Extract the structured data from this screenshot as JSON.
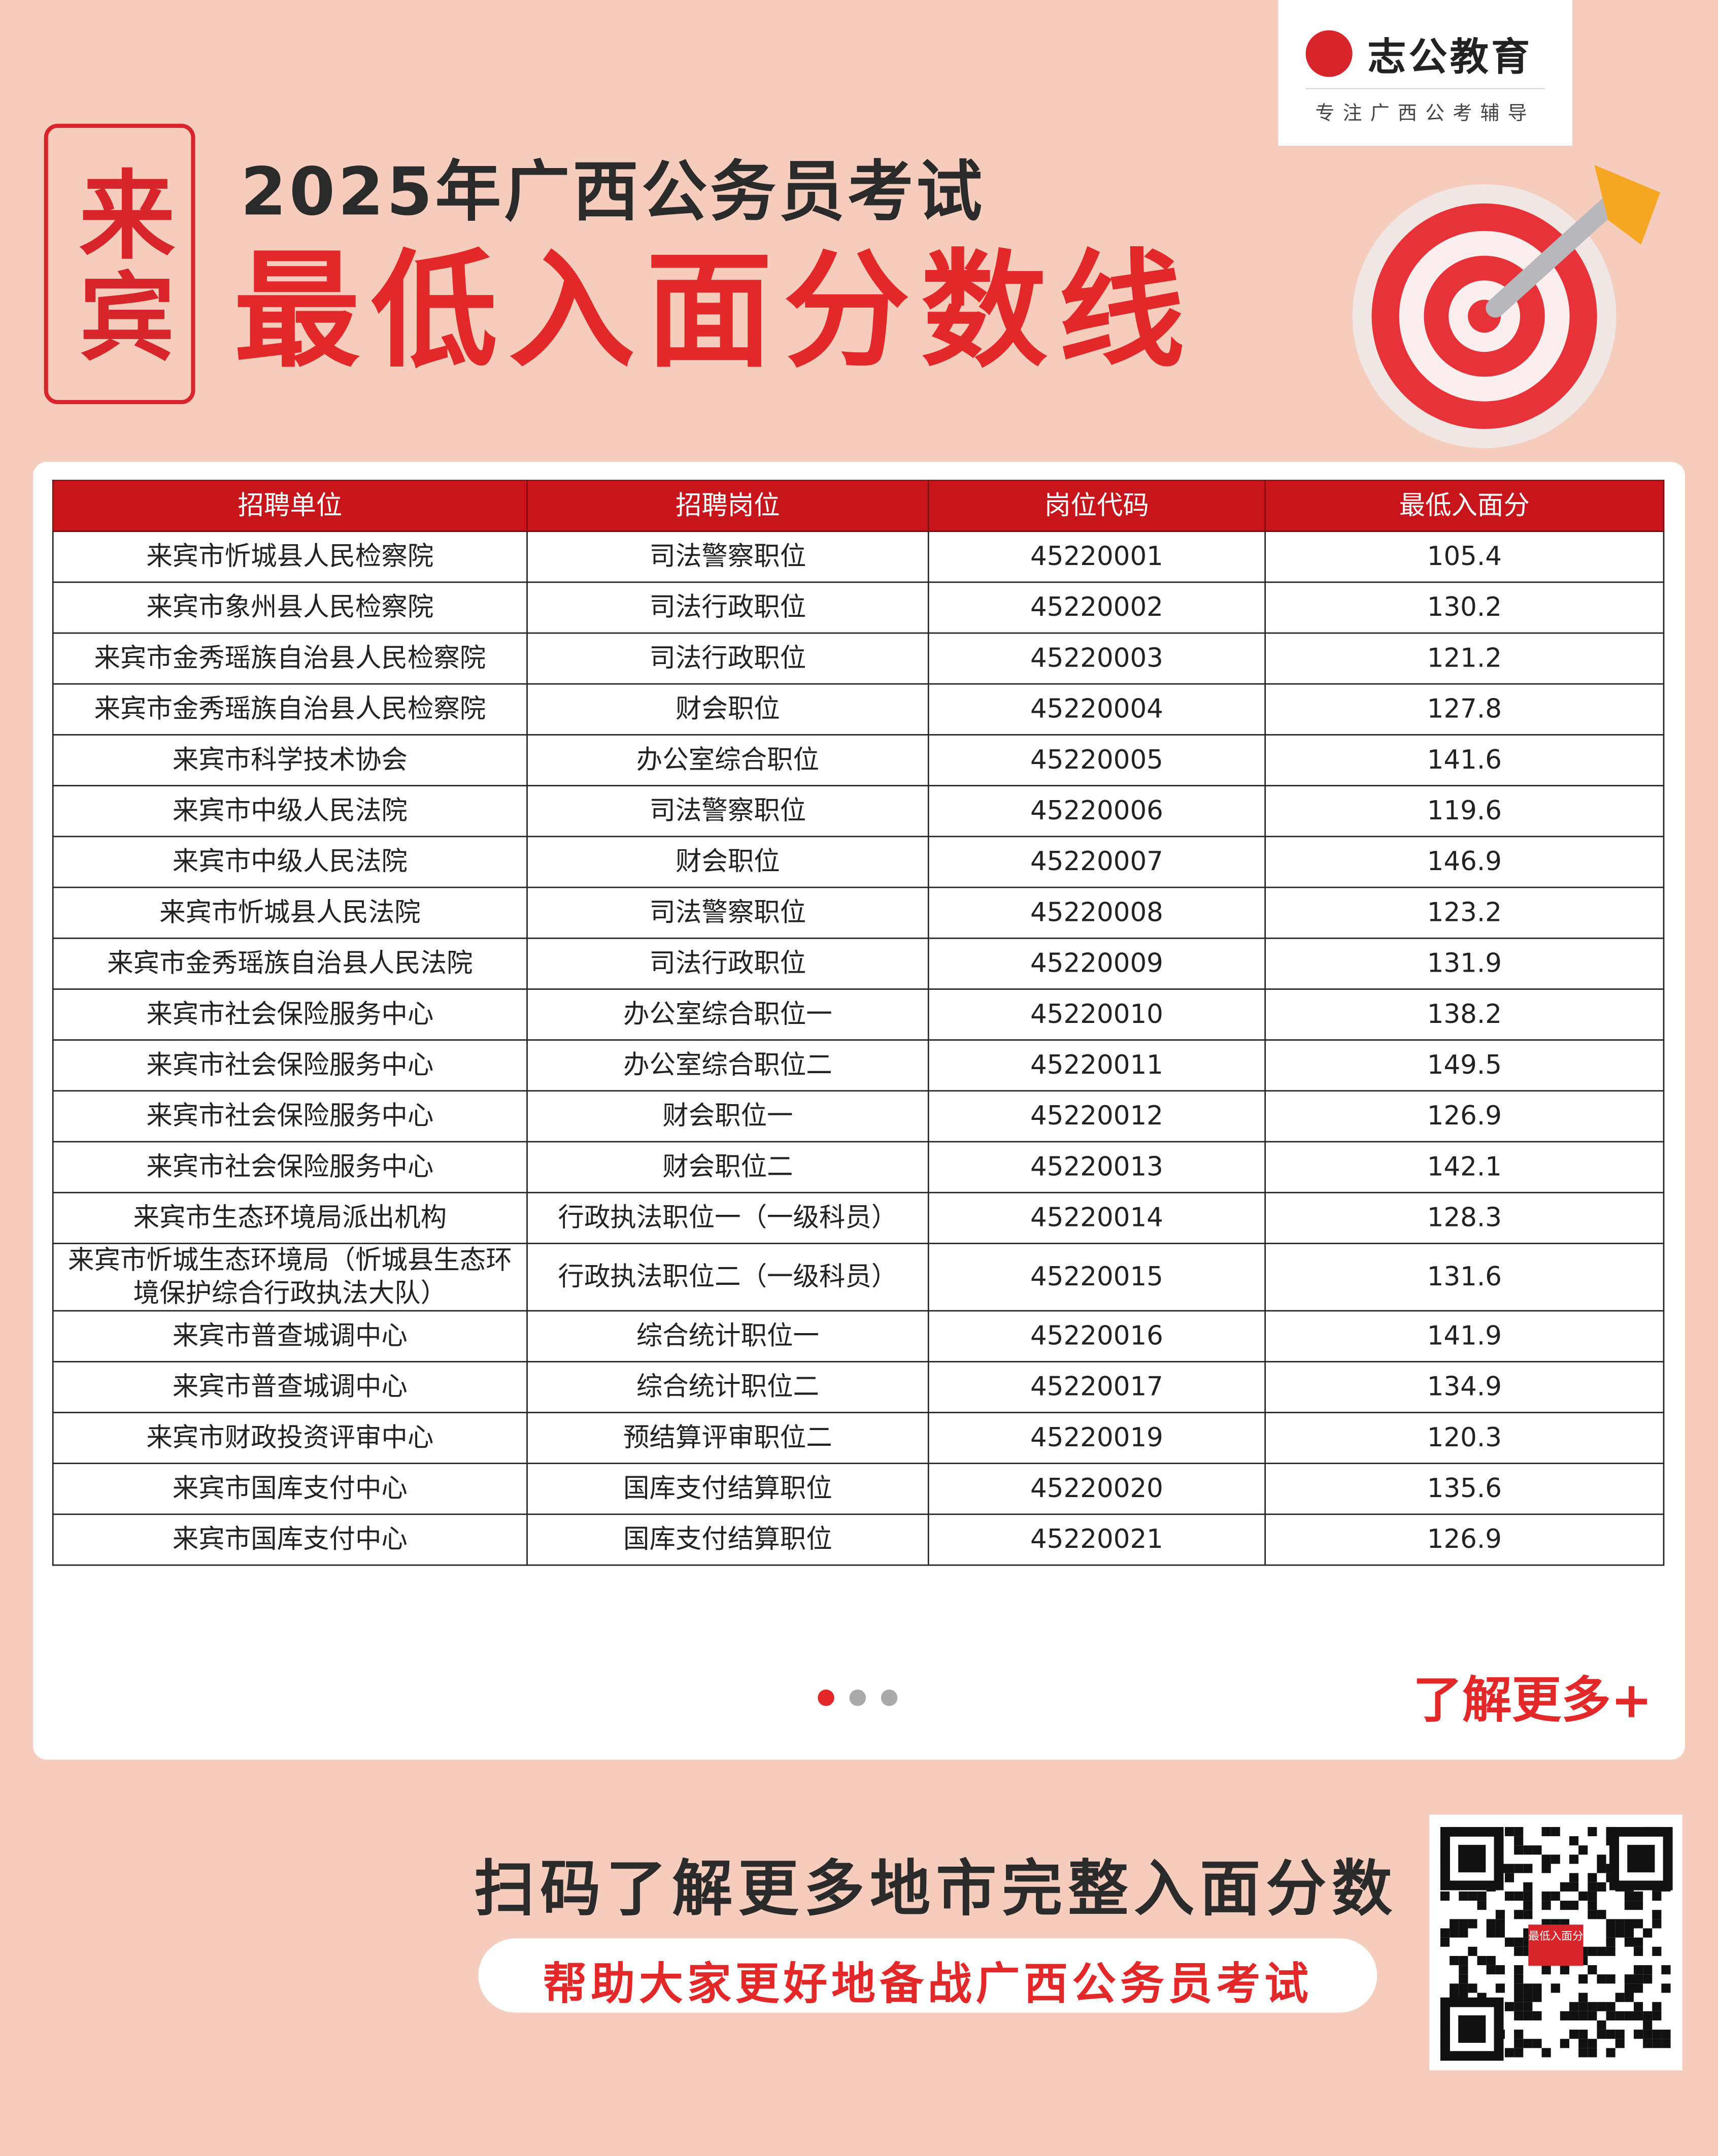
{
  "logo": {
    "name": "志公教育",
    "slogan": "专注广西公考辅导"
  },
  "header": {
    "city": "来宾",
    "subtitle": "2025年广西公务员考试",
    "title": "最低入面分数线"
  },
  "table": {
    "columns": [
      "招聘单位",
      "招聘岗位",
      "岗位代码",
      "最低入面分"
    ],
    "rows": [
      [
        "来宾市忻城县人民检察院",
        "司法警察职位",
        "45220001",
        "105.4"
      ],
      [
        "来宾市象州县人民检察院",
        "司法行政职位",
        "45220002",
        "130.2"
      ],
      [
        "来宾市金秀瑶族自治县人民检察院",
        "司法行政职位",
        "45220003",
        "121.2"
      ],
      [
        "来宾市金秀瑶族自治县人民检察院",
        "财会职位",
        "45220004",
        "127.8"
      ],
      [
        "来宾市科学技术协会",
        "办公室综合职位",
        "45220005",
        "141.6"
      ],
      [
        "来宾市中级人民法院",
        "司法警察职位",
        "45220006",
        "119.6"
      ],
      [
        "来宾市中级人民法院",
        "财会职位",
        "45220007",
        "146.9"
      ],
      [
        "来宾市忻城县人民法院",
        "司法警察职位",
        "45220008",
        "123.2"
      ],
      [
        "来宾市金秀瑶族自治县人民法院",
        "司法行政职位",
        "45220009",
        "131.9"
      ],
      [
        "来宾市社会保险服务中心",
        "办公室综合职位一",
        "45220010",
        "138.2"
      ],
      [
        "来宾市社会保险服务中心",
        "办公室综合职位二",
        "45220011",
        "149.5"
      ],
      [
        "来宾市社会保险服务中心",
        "财会职位一",
        "45220012",
        "126.9"
      ],
      [
        "来宾市社会保险服务中心",
        "财会职位二",
        "45220013",
        "142.1"
      ],
      [
        "来宾市生态环境局派出机构",
        "行政执法职位一（一级科员）",
        "45220014",
        "128.3"
      ],
      [
        "来宾市忻城生态环境局（忻城县生态环境保护综合行政执法大队）",
        "行政执法职位二（一级科员）",
        "45220015",
        "131.6"
      ],
      [
        "来宾市普查城调中心",
        "综合统计职位一",
        "45220016",
        "141.9"
      ],
      [
        "来宾市普查城调中心",
        "综合统计职位二",
        "45220017",
        "134.9"
      ],
      [
        "来宾市财政投资评审中心",
        "预结算评审职位二",
        "45220019",
        "120.3"
      ],
      [
        "来宾市国库支付中心",
        "国库支付结算职位",
        "45220020",
        "135.6"
      ],
      [
        "来宾市国库支付中心",
        "国库支付结算职位",
        "45220021",
        "126.9"
      ]
    ]
  },
  "more_link": "了解更多+",
  "footer": {
    "cta": "扫码了解更多地市完整入面分数",
    "tagline": "帮助大家更好地备战广西公务员考试",
    "qr_label": "最低入面分"
  }
}
